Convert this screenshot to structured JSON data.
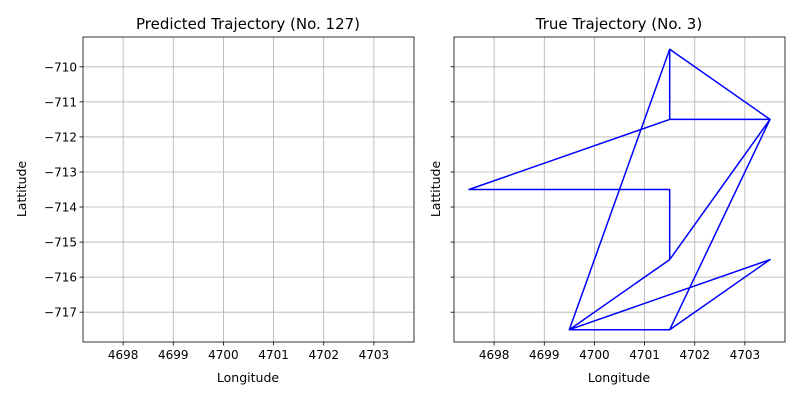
{
  "chart_data": [
    {
      "type": "line",
      "title": "Predicted Trajectory (No. 127)",
      "xlabel": "Longitude",
      "ylabel": "Lattitude",
      "xlim": [
        4697.2,
        4703.8
      ],
      "ylim": [
        -717.85,
        -709.15
      ],
      "xticks": [
        "4698",
        "4699",
        "4700",
        "4701",
        "4702",
        "4703"
      ],
      "yticks": [
        "−710",
        "−711",
        "−712",
        "−713",
        "−714",
        "−715",
        "−716",
        "−717"
      ],
      "grid": true,
      "line_color": "#0000ff",
      "x": [],
      "y": []
    },
    {
      "type": "line",
      "title": "True Trajectory (No. 3)",
      "xlabel": "Longitude",
      "ylabel": "Lattitude",
      "xlim": [
        4697.2,
        4703.8
      ],
      "ylim": [
        -717.85,
        -709.15
      ],
      "xticks": [
        "4698",
        "4699",
        "4700",
        "4701",
        "4702",
        "4703"
      ],
      "yticks": [
        "−710",
        "−711",
        "−712",
        "−713",
        "−714",
        "−715",
        "−716",
        "−717"
      ],
      "ytick_labels_visible": false,
      "grid": true,
      "line_color": "#0000ff",
      "x": [
        4701.5,
        4703.5,
        4701.5,
        4701.5,
        4699.5,
        4701.5,
        4703.5,
        4701.5,
        4697.5,
        4701.5,
        4701.5,
        4703.5,
        4701.5,
        4699.5,
        4701.5,
        4703.5,
        4699.5,
        4701.5
      ],
      "y": [
        -709.5,
        -711.5,
        -711.5,
        -709.5,
        -717.5,
        -717.5,
        -711.5,
        -711.5,
        -713.5,
        -713.5,
        -715.5,
        -711.5,
        -715.5,
        -717.5,
        -717.5,
        -715.5,
        -717.5,
        -717.5
      ]
    }
  ]
}
